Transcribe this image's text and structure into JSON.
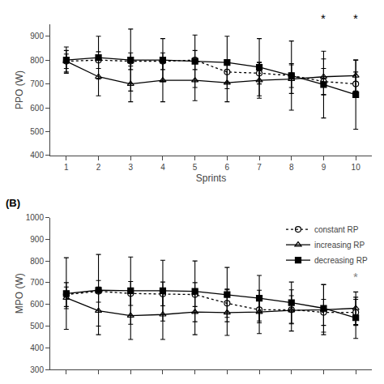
{
  "chart_data": [
    {
      "type": "line",
      "x": [
        1,
        2,
        3,
        4,
        5,
        6,
        7,
        8,
        9,
        10
      ],
      "xlabel": "Sprints",
      "ylabel": "PPO (W)",
      "xlim": [
        0.5,
        10.5
      ],
      "xticks": [
        1,
        2,
        3,
        4,
        5,
        6,
        7,
        8,
        9,
        10
      ],
      "ylim": [
        400,
        950
      ],
      "yticks": [
        400,
        500,
        600,
        700,
        800,
        900
      ],
      "grid": false,
      "series": [
        {
          "color": "black",
          "marker": "circle-open",
          "line_style": "dotted",
          "values": [
            795,
            800,
            795,
            795,
            800,
            750,
            745,
            735,
            710,
            700
          ],
          "error_up": [
            30,
            35,
            35,
            35,
            40,
            45,
            45,
            50,
            55,
            50
          ],
          "error_down": [
            30,
            35,
            35,
            35,
            40,
            45,
            45,
            50,
            55,
            50
          ]
        },
        {
          "color": "black",
          "marker": "triangle-up-open",
          "line_style": "solid",
          "values": [
            795,
            730,
            700,
            715,
            715,
            705,
            715,
            720,
            730,
            735
          ],
          "error_up": [
            45,
            80,
            75,
            90,
            85,
            80,
            75,
            60,
            75,
            65
          ],
          "error_down": [
            45,
            80,
            75,
            90,
            85,
            80,
            75,
            60,
            75,
            65
          ]
        },
        {
          "color": "black",
          "marker": "square",
          "line_style": "solid",
          "values": [
            800,
            810,
            800,
            800,
            795,
            790,
            770,
            735,
            697,
            655
          ],
          "error_up": [
            55,
            90,
            130,
            90,
            110,
            110,
            120,
            145,
            140,
            145
          ],
          "error_down": [
            55,
            90,
            130,
            90,
            110,
            110,
            120,
            145,
            140,
            145
          ]
        }
      ],
      "annotations": [
        {
          "text": "*",
          "x": 9,
          "y": 940,
          "color": "black"
        },
        {
          "text": "*",
          "x": 10,
          "y": 940,
          "color": "black"
        }
      ]
    },
    {
      "type": "line",
      "title": "(B)",
      "x": [
        1,
        2,
        3,
        4,
        5,
        6,
        7,
        8,
        9,
        10
      ],
      "ylabel": "MPO (W)",
      "xlim": [
        0.5,
        10.5
      ],
      "xticks": [
        1,
        2,
        3,
        4,
        5,
        6,
        7,
        8,
        9,
        10
      ],
      "ylim": [
        300,
        1000
      ],
      "yticks": [
        300,
        400,
        500,
        600,
        700,
        800,
        900,
        1000
      ],
      "tick_labels": "y",
      "grid": false,
      "legend": "upper right",
      "series": [
        {
          "name": "constant RP",
          "color": "black",
          "marker": "circle-open",
          "line_style": "dotted",
          "values": [
            645,
            660,
            650,
            648,
            645,
            605,
            575,
            575,
            563,
            563
          ],
          "error_up": [
            55,
            50,
            55,
            55,
            55,
            65,
            60,
            65,
            60,
            60
          ],
          "error_down": [
            55,
            50,
            55,
            55,
            55,
            65,
            60,
            65,
            60,
            60
          ]
        },
        {
          "name": "increasing RP",
          "color": "black",
          "marker": "triangle-up-open",
          "line_style": "solid",
          "values": [
            630,
            570,
            548,
            553,
            565,
            562,
            565,
            572,
            575,
            582
          ],
          "error_up": [
            50,
            110,
            110,
            115,
            105,
            105,
            100,
            95,
            115,
            75
          ],
          "error_down": [
            50,
            110,
            110,
            115,
            105,
            105,
            100,
            95,
            115,
            75
          ]
        },
        {
          "name": "decreasing RP",
          "color": "black",
          "marker": "square",
          "line_style": "solid",
          "values": [
            650,
            665,
            663,
            663,
            660,
            645,
            628,
            608,
            582,
            538
          ],
          "error_up": [
            165,
            165,
            155,
            140,
            140,
            125,
            105,
            95,
            110,
            95
          ],
          "error_down": [
            165,
            165,
            155,
            140,
            140,
            125,
            105,
            95,
            110,
            95
          ]
        }
      ],
      "annotations": [
        {
          "text": "*",
          "x": 10,
          "y": 690,
          "color": "gray"
        }
      ]
    }
  ]
}
